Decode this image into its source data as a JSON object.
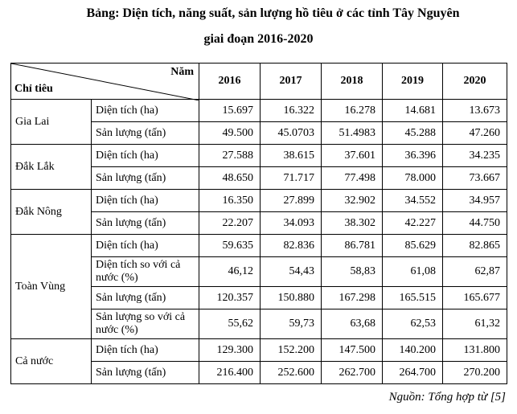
{
  "header": {
    "title_line1": "Bảng: Diện tích, năng suất, sản lượng hồ tiêu ở các tỉnh Tây Nguyên",
    "title_line2": "giai đoạn 2016-2020"
  },
  "table": {
    "corner": {
      "row_label": "Chỉ tiêu",
      "col_label": "Năm"
    },
    "years": [
      "2016",
      "2017",
      "2018",
      "2019",
      "2020"
    ],
    "groups": [
      {
        "name": "Gia Lai",
        "rows": [
          {
            "label": "Diện tích (ha)",
            "values": [
              "15.697",
              "16.322",
              "16.278",
              "14.681",
              "13.673"
            ]
          },
          {
            "label": "Sản lượng (tấn)",
            "values": [
              "49.500",
              "45.0703",
              "51.4983",
              "45.288",
              "47.260"
            ]
          }
        ]
      },
      {
        "name": "Đắk Lắk",
        "rows": [
          {
            "label": "Diện tích (ha)",
            "values": [
              "27.588",
              "38.615",
              "37.601",
              "36.396",
              "34.235"
            ]
          },
          {
            "label": "Sản lượng (tấn)",
            "values": [
              "48.650",
              "71.717",
              "77.498",
              "78.000",
              "73.667"
            ]
          }
        ]
      },
      {
        "name": "Đắk Nông",
        "rows": [
          {
            "label": "Diện tích (ha)",
            "values": [
              "16.350",
              "27.899",
              "32.902",
              "34.552",
              "34.957"
            ]
          },
          {
            "label": "Sản lượng (tấn)",
            "values": [
              "22.207",
              "34.093",
              "38.302",
              "42.227",
              "44.750"
            ]
          }
        ]
      },
      {
        "name": "Toàn Vùng",
        "rows": [
          {
            "label": "Diện tích (ha)",
            "values": [
              "59.635",
              "82.836",
              "86.781",
              "85.629",
              "82.865"
            ]
          },
          {
            "label": "Diện tích so với cả nước (%)",
            "values": [
              "46,12",
              "54,43",
              "58,83",
              "61,08",
              "62,87"
            ]
          },
          {
            "label": "Sản lượng (tấn)",
            "values": [
              "120.357",
              "150.880",
              "167.298",
              "165.515",
              "165.677"
            ]
          },
          {
            "label": "Sản lượng so với cả nước (%)",
            "values": [
              "55,62",
              "59,73",
              "63,68",
              "62,53",
              "61,32"
            ]
          }
        ]
      },
      {
        "name": "Cả nước",
        "rows": [
          {
            "label": "Diện tích (ha)",
            "values": [
              "129.300",
              "152.200",
              "147.500",
              "140.200",
              "131.800"
            ]
          },
          {
            "label": "Sản lượng (tấn)",
            "values": [
              "216.400",
              "252.600",
              "262.700",
              "264.700",
              "270.200"
            ]
          }
        ]
      }
    ]
  },
  "source": "Nguồn: Tổng hợp từ [5]"
}
